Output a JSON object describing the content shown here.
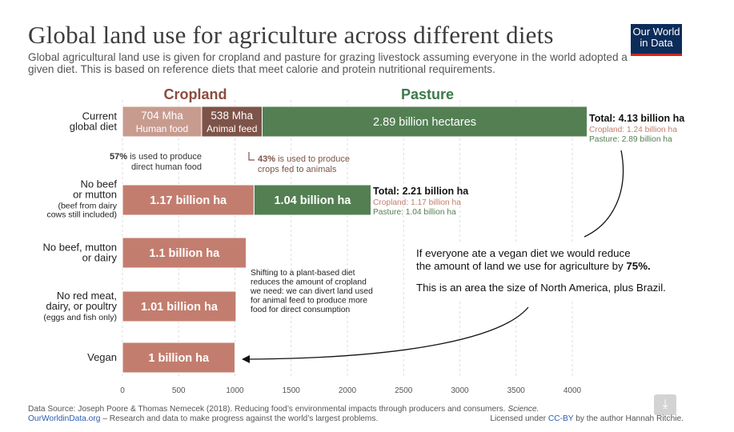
{
  "header": {
    "title": "Global land use for agriculture across different diets",
    "subtitle": "Global agricultural land use is given for cropland and pasture for grazing livestock assuming everyone in the world adopted a given diet. This is based on reference diets that meet calorie and protein nutritional requirements.",
    "logo_line1": "Our World",
    "logo_line2": "in Data"
  },
  "colors": {
    "cropland_header": "#8c4c3e",
    "pasture_header": "#3c7a4a",
    "human_food": "#c89b8f",
    "animal_feed": "#7e5349",
    "cropland": "#c37d6f",
    "pasture": "#537f53",
    "gridline": "#dddddd"
  },
  "chart_data": {
    "type": "bar",
    "orientation": "horizontal",
    "stacked": true,
    "title": "Global land use for agriculture across different diets",
    "xlabel": "",
    "unit": "million hectares",
    "xlim": [
      0,
      4100
    ],
    "x_ticks": [
      0,
      500,
      1000,
      1500,
      2000,
      2500,
      3000,
      3500,
      4000
    ],
    "column_headers": {
      "cropland": "Cropland",
      "pasture": "Pasture"
    },
    "categories": [
      {
        "lines": [
          "Current",
          "global diet"
        ]
      },
      {
        "lines": [
          "No beef",
          "or mutton",
          "(beef from dairy",
          "cows still included)"
        ]
      },
      {
        "lines": [
          "No beef, mutton",
          "or dairy"
        ]
      },
      {
        "lines": [
          "No red meat,",
          "dairy, or poultry",
          "(eggs and fish only)"
        ]
      },
      {
        "lines": [
          "Vegan"
        ]
      }
    ],
    "series": [
      {
        "name": "Cropland – human food",
        "values": [
          704,
          null,
          null,
          null,
          null
        ]
      },
      {
        "name": "Cropland – animal feed",
        "values": [
          538,
          null,
          null,
          null,
          null
        ]
      },
      {
        "name": "Cropland",
        "values": [
          null,
          1170,
          1100,
          1010,
          1000
        ]
      },
      {
        "name": "Pasture",
        "values": [
          2890,
          1040,
          0,
          0,
          0
        ]
      }
    ],
    "bar_labels": [
      [
        {
          "lines": [
            "704 Mha",
            "Human food"
          ]
        },
        {
          "lines": [
            "538 Mha",
            "Animal feed"
          ]
        },
        {
          "lines": [
            "2.89 billion hectares"
          ]
        }
      ],
      [
        {
          "lines": [
            "1.17 billion ha"
          ]
        },
        {
          "lines": [
            "1.04 billion ha"
          ]
        }
      ],
      [
        {
          "lines": [
            "1.1 billion ha"
          ]
        }
      ],
      [
        {
          "lines": [
            "1.01 billion ha"
          ]
        }
      ],
      [
        {
          "lines": [
            "1 billion ha"
          ]
        }
      ]
    ],
    "totals": [
      {
        "total_label": "Total: ",
        "total_value": "4.13 billion ha",
        "cropland": "Cropland: 1.24 billion ha",
        "pasture": "Pasture: 2.89 billion ha"
      },
      {
        "total_label": "Total: ",
        "total_value": "2.21 billion ha",
        "cropland": "Cropland: 1.17 billion ha",
        "pasture": "Pasture: 1.04 billion ha"
      }
    ],
    "annotations": {
      "human_food_share_pct": "57%",
      "human_food_share_text": " is used to produce",
      "human_food_share_line2": "direct human food",
      "animal_feed_share_pct": "43%",
      "animal_feed_share_text": " is used to produce",
      "animal_feed_share_line2": "crops fed to animals",
      "plant_based": [
        "Shifting to a plant-based diet",
        "reduces the amount of cropland",
        "we need: we can divert land used",
        "for animal feed to produce more",
        "food for direct consumption"
      ],
      "vegan_line1": "If everyone ate a vegan diet we would reduce",
      "vegan_line2_text": "the amount of land we use for agriculture by ",
      "vegan_line2_bold": "75%.",
      "vegan_line3": "This is an area the size of North America, plus Brazil."
    }
  },
  "footer": {
    "source_prefix": "Data Source: Joseph Poore & Thomas Nemecek (2018). Reducing food’s environmental impacts through producers and consumers. ",
    "source_journal": "Science.",
    "owid_link": "OurWorldinData.org",
    "owid_tagline": " – Research and data to make progress against the world’s largest problems.",
    "license_prefix": "Licensed under ",
    "license_link": "CC-BY",
    "license_suffix": " by the author Hannah Ritchie."
  },
  "icons": {
    "download": "download-icon"
  }
}
